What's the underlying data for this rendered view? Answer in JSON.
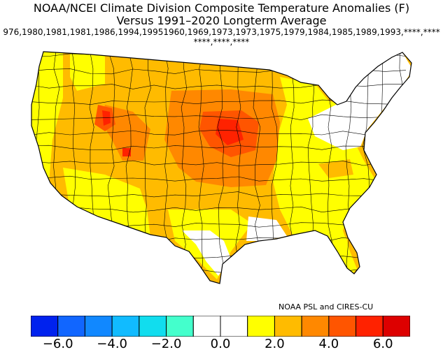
{
  "title_line1": "NOAA/NCEI Climate Division Composite Temperature Anomalies (F)",
  "title_line2": "Versus 1991–2020 Longterm Average",
  "years_line1": "976,1980,1981,1981,1986,1994,19951960,1969,1973,1973,1975,1979,1984,1985,1989,1993,****,****",
  "years_line2": "****,****,****",
  "credit": "NOAA PSL and CIRES-CU",
  "colorbar": {
    "colors": [
      "#0022ee",
      "#1166ff",
      "#1188ff",
      "#11bbff",
      "#11ddee",
      "#44ffcc",
      "#ffffff",
      "#ffffff",
      "#ffff00",
      "#ffbb00",
      "#ff8800",
      "#ff5500",
      "#ff2200",
      "#dd0000"
    ],
    "tick_labels": [
      "−6.0",
      "−4.0",
      "−2.0",
      "0.0",
      "2.0",
      "4.0",
      "6.0"
    ],
    "tick_values": [
      -6,
      -4,
      -2,
      0,
      2,
      4,
      6
    ],
    "range": [
      -7,
      7
    ]
  },
  "map_colors": {
    "near_zero": "#ffffff",
    "plus_1_2": "#ffff00",
    "plus_2_3": "#ffbb00",
    "plus_3_4": "#ff8800",
    "plus_4_5": "#ff5500",
    "plus_5_6": "#ff2200",
    "boundary": "#000000"
  }
}
